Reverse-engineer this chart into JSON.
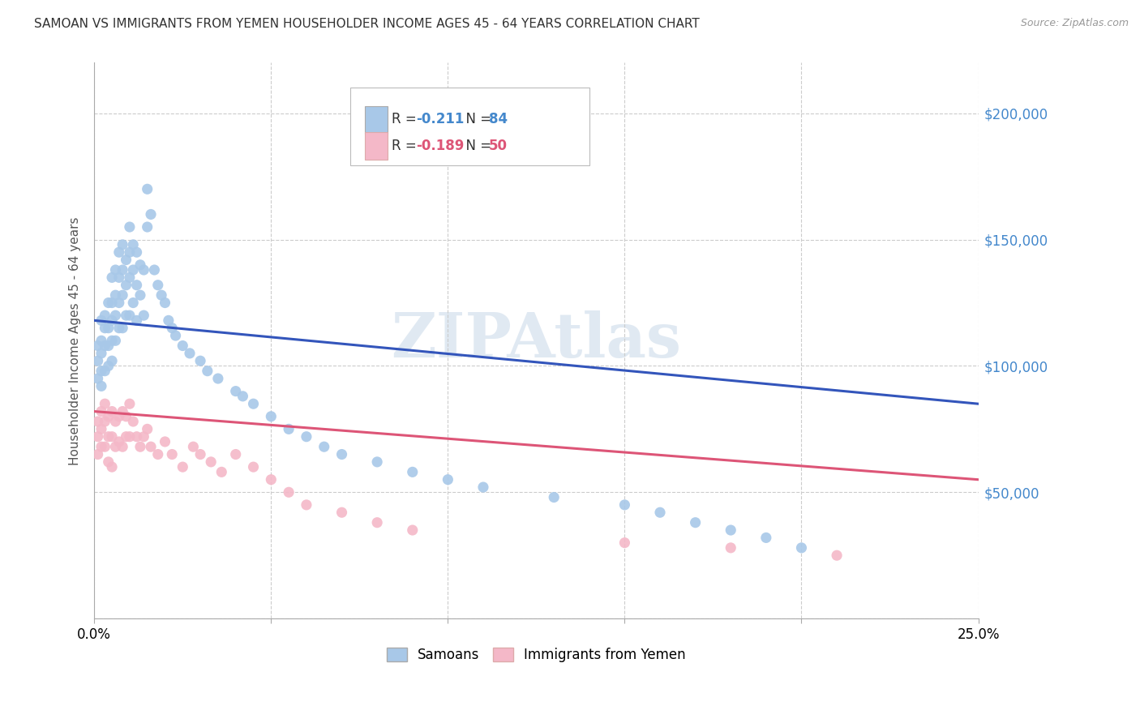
{
  "title": "SAMOAN VS IMMIGRANTS FROM YEMEN HOUSEHOLDER INCOME AGES 45 - 64 YEARS CORRELATION CHART",
  "source": "Source: ZipAtlas.com",
  "ylabel": "Householder Income Ages 45 - 64 years",
  "xlim": [
    0.0,
    0.25
  ],
  "ylim": [
    0,
    220000
  ],
  "xticks": [
    0.0,
    0.05,
    0.1,
    0.15,
    0.2,
    0.25
  ],
  "yticks": [
    0,
    50000,
    100000,
    150000,
    200000
  ],
  "background_color": "#ffffff",
  "grid_color": "#cccccc",
  "blue_scatter_color": "#a8c8e8",
  "pink_scatter_color": "#f4b8c8",
  "blue_line_color": "#3355bb",
  "pink_line_color": "#dd5577",
  "legend_R_blue": "-0.211",
  "legend_N_blue": "84",
  "legend_R_pink": "-0.189",
  "legend_N_pink": "50",
  "legend_label_blue": "Samoans",
  "legend_label_pink": "Immigrants from Yemen",
  "watermark": "ZIPAtlas",
  "samoans_x": [
    0.001,
    0.001,
    0.001,
    0.002,
    0.002,
    0.002,
    0.002,
    0.002,
    0.003,
    0.003,
    0.003,
    0.003,
    0.004,
    0.004,
    0.004,
    0.004,
    0.005,
    0.005,
    0.005,
    0.005,
    0.005,
    0.006,
    0.006,
    0.006,
    0.006,
    0.007,
    0.007,
    0.007,
    0.007,
    0.008,
    0.008,
    0.008,
    0.008,
    0.009,
    0.009,
    0.009,
    0.01,
    0.01,
    0.01,
    0.01,
    0.011,
    0.011,
    0.011,
    0.012,
    0.012,
    0.012,
    0.013,
    0.013,
    0.014,
    0.014,
    0.015,
    0.015,
    0.016,
    0.017,
    0.018,
    0.019,
    0.02,
    0.021,
    0.022,
    0.023,
    0.025,
    0.027,
    0.03,
    0.032,
    0.035,
    0.04,
    0.042,
    0.045,
    0.05,
    0.055,
    0.06,
    0.065,
    0.07,
    0.08,
    0.09,
    0.1,
    0.11,
    0.13,
    0.15,
    0.16,
    0.17,
    0.18,
    0.19,
    0.2
  ],
  "samoans_y": [
    108000,
    102000,
    95000,
    118000,
    110000,
    105000,
    98000,
    92000,
    120000,
    115000,
    108000,
    98000,
    125000,
    115000,
    108000,
    100000,
    135000,
    125000,
    118000,
    110000,
    102000,
    138000,
    128000,
    120000,
    110000,
    145000,
    135000,
    125000,
    115000,
    148000,
    138000,
    128000,
    115000,
    142000,
    132000,
    120000,
    155000,
    145000,
    135000,
    120000,
    148000,
    138000,
    125000,
    145000,
    132000,
    118000,
    140000,
    128000,
    138000,
    120000,
    170000,
    155000,
    160000,
    138000,
    132000,
    128000,
    125000,
    118000,
    115000,
    112000,
    108000,
    105000,
    102000,
    98000,
    95000,
    90000,
    88000,
    85000,
    80000,
    75000,
    72000,
    68000,
    65000,
    62000,
    58000,
    55000,
    52000,
    48000,
    45000,
    42000,
    38000,
    35000,
    32000,
    28000
  ],
  "yemen_x": [
    0.001,
    0.001,
    0.001,
    0.002,
    0.002,
    0.002,
    0.003,
    0.003,
    0.003,
    0.004,
    0.004,
    0.004,
    0.005,
    0.005,
    0.005,
    0.006,
    0.006,
    0.007,
    0.007,
    0.008,
    0.008,
    0.009,
    0.009,
    0.01,
    0.01,
    0.011,
    0.012,
    0.013,
    0.014,
    0.015,
    0.016,
    0.018,
    0.02,
    0.022,
    0.025,
    0.028,
    0.03,
    0.033,
    0.036,
    0.04,
    0.045,
    0.05,
    0.055,
    0.06,
    0.07,
    0.08,
    0.09,
    0.15,
    0.18,
    0.21
  ],
  "yemen_y": [
    78000,
    72000,
    65000,
    82000,
    75000,
    68000,
    85000,
    78000,
    68000,
    80000,
    72000,
    62000,
    82000,
    72000,
    60000,
    78000,
    68000,
    80000,
    70000,
    82000,
    68000,
    80000,
    72000,
    85000,
    72000,
    78000,
    72000,
    68000,
    72000,
    75000,
    68000,
    65000,
    70000,
    65000,
    60000,
    68000,
    65000,
    62000,
    58000,
    65000,
    60000,
    55000,
    50000,
    45000,
    42000,
    38000,
    35000,
    30000,
    28000,
    25000
  ]
}
